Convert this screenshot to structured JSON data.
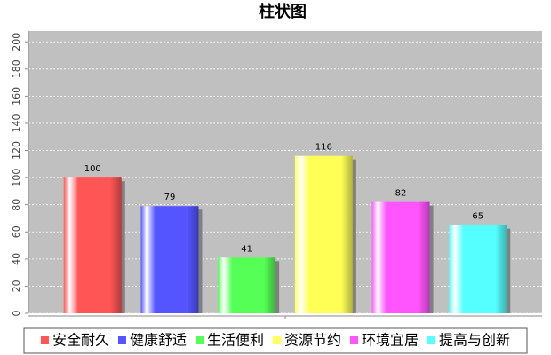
{
  "chart_data": {
    "type": "bar",
    "title": "柱状图",
    "categories": [
      null
    ],
    "series": [
      {
        "name": "安全耐久",
        "color": "#ff5555",
        "values": [
          100
        ]
      },
      {
        "name": "健康舒适",
        "color": "#5555ff",
        "values": [
          79
        ]
      },
      {
        "name": "生活便利",
        "color": "#55ff55",
        "values": [
          41
        ]
      },
      {
        "name": "资源节约",
        "color": "#ffff55",
        "values": [
          116
        ]
      },
      {
        "name": "环境宜居",
        "color": "#ff55ff",
        "values": [
          82
        ]
      },
      {
        "name": "提高与创新",
        "color": "#55ffff",
        "values": [
          65
        ]
      }
    ],
    "ylim": [
      0,
      208
    ],
    "yticks": [
      0,
      20,
      40,
      60,
      80,
      100,
      120,
      140,
      160,
      180,
      200
    ],
    "grid": true
  }
}
